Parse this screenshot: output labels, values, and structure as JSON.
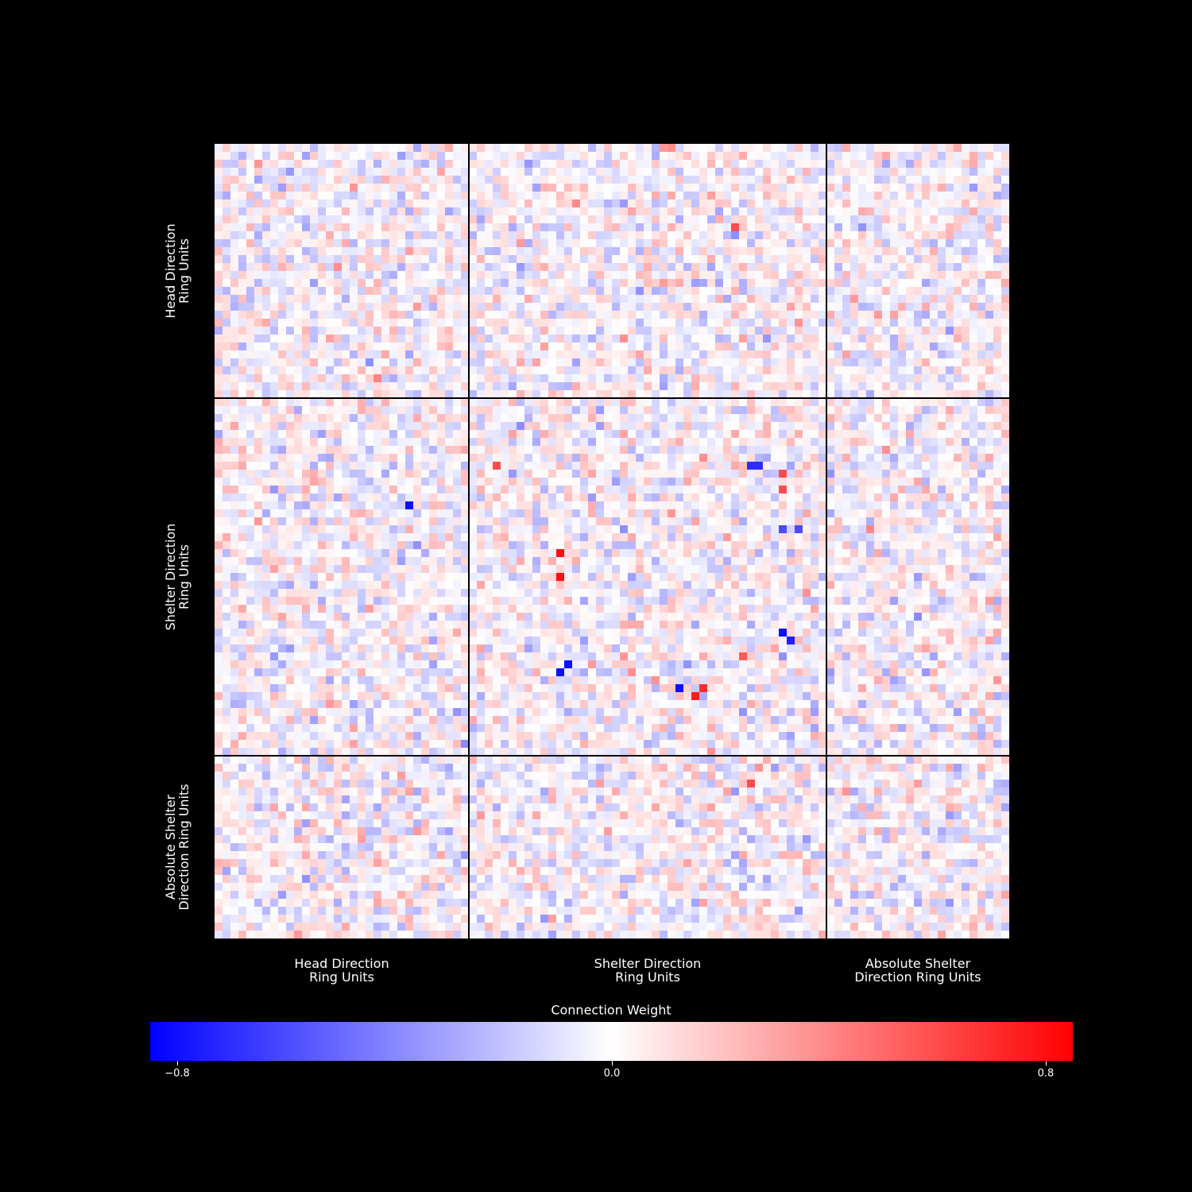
{
  "chart_data": {
    "type": "heatmap",
    "title": "",
    "groups": [
      {
        "name": "Head Direction\nRing Units",
        "units": 32
      },
      {
        "name": "Shelter Direction\nRing Units",
        "units": 45
      },
      {
        "name": "Absolute Shelter\nDirection Ring Units",
        "units": 23
      }
    ],
    "row_labels": [
      "Head Direction\nRing Units",
      "Shelter Direction\nRing Units",
      "Absolute Shelter\nDirection Ring Units"
    ],
    "col_labels": [
      "Head Direction\nRing Units",
      "Shelter Direction\nRing Units",
      "Absolute Shelter\nDirection Ring Units"
    ],
    "colorbar": {
      "label": "Connection Weight",
      "vmin": -0.85,
      "vmax": 0.85,
      "ticks": [
        -0.8,
        0.0,
        0.8
      ],
      "tick_labels": [
        "−0.8",
        "0.0",
        "0.8"
      ],
      "colormap": "bwr",
      "colors": [
        "#0000ff",
        "#ffffff",
        "#ff0000"
      ]
    },
    "values_note": "100x100 weight matrix; individual cell values are not legible, so cells approximate the visible pattern",
    "strong_cells": [
      {
        "row": 68,
        "col": 58,
        "value": -0.8
      },
      {
        "row": 69,
        "col": 60,
        "value": 0.75
      },
      {
        "row": 68,
        "col": 61,
        "value": 0.7
      },
      {
        "row": 61,
        "col": 71,
        "value": -0.8
      },
      {
        "row": 62,
        "col": 72,
        "value": -0.75
      },
      {
        "row": 51,
        "col": 43,
        "value": 0.8
      },
      {
        "row": 54,
        "col": 43,
        "value": 0.8
      },
      {
        "row": 65,
        "col": 44,
        "value": -0.8
      },
      {
        "row": 66,
        "col": 43,
        "value": -0.8
      },
      {
        "row": 40,
        "col": 35,
        "value": 0.6
      },
      {
        "row": 45,
        "col": 24,
        "value": -0.8
      },
      {
        "row": 40,
        "col": 67,
        "value": -0.7
      },
      {
        "row": 40,
        "col": 68,
        "value": -0.7
      },
      {
        "row": 41,
        "col": 71,
        "value": 0.6
      },
      {
        "row": 43,
        "col": 71,
        "value": 0.6
      },
      {
        "row": 48,
        "col": 73,
        "value": -0.6
      },
      {
        "row": 48,
        "col": 71,
        "value": -0.6
      },
      {
        "row": 10,
        "col": 65,
        "value": 0.6
      },
      {
        "row": 80,
        "col": 67,
        "value": 0.6
      },
      {
        "row": 64,
        "col": 66,
        "value": 0.55
      }
    ]
  }
}
